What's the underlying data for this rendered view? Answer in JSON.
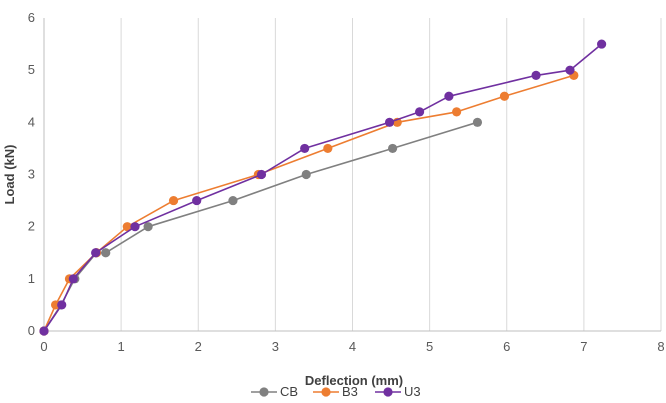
{
  "chart_data": {
    "type": "line",
    "title": "",
    "xlabel": "Deflection (mm)",
    "ylabel": "Load (kN)",
    "xlim": [
      0,
      8
    ],
    "ylim": [
      0,
      6
    ],
    "x_ticks": [
      "0",
      "1",
      "2",
      "3",
      "4",
      "5",
      "6",
      "7",
      "8"
    ],
    "y_ticks": [
      "0",
      "1",
      "2",
      "3",
      "4",
      "5",
      "6"
    ],
    "grid": "vertical",
    "legend_position": "bottom",
    "series": [
      {
        "name": "CB",
        "color": "#808080",
        "x": [
          0,
          0.22,
          0.4,
          0.68,
          0.8,
          1.35,
          2.45,
          3.4,
          4.52,
          5.62
        ],
        "y": [
          0,
          0.5,
          1.0,
          1.5,
          1.5,
          2.0,
          2.5,
          3.0,
          3.5,
          4.0
        ]
      },
      {
        "name": "B3",
        "color": "#ED7D31",
        "x": [
          0,
          0.15,
          0.33,
          0.68,
          1.08,
          1.68,
          2.78,
          3.68,
          4.58,
          5.35,
          5.97,
          6.87
        ],
        "y": [
          0,
          0.5,
          1.0,
          1.5,
          2.0,
          2.5,
          3.0,
          3.5,
          4.0,
          4.2,
          4.5,
          4.9
        ]
      },
      {
        "name": "U3",
        "color": "#7030A0",
        "x": [
          0,
          0.23,
          0.38,
          0.67,
          1.18,
          1.98,
          2.82,
          3.38,
          4.48,
          4.87,
          5.25,
          6.38,
          6.82,
          7.23
        ],
        "y": [
          0,
          0.5,
          1.0,
          1.5,
          2.0,
          2.5,
          3.0,
          3.5,
          4.0,
          4.2,
          4.5,
          4.9,
          5.0,
          5.5
        ]
      }
    ]
  }
}
